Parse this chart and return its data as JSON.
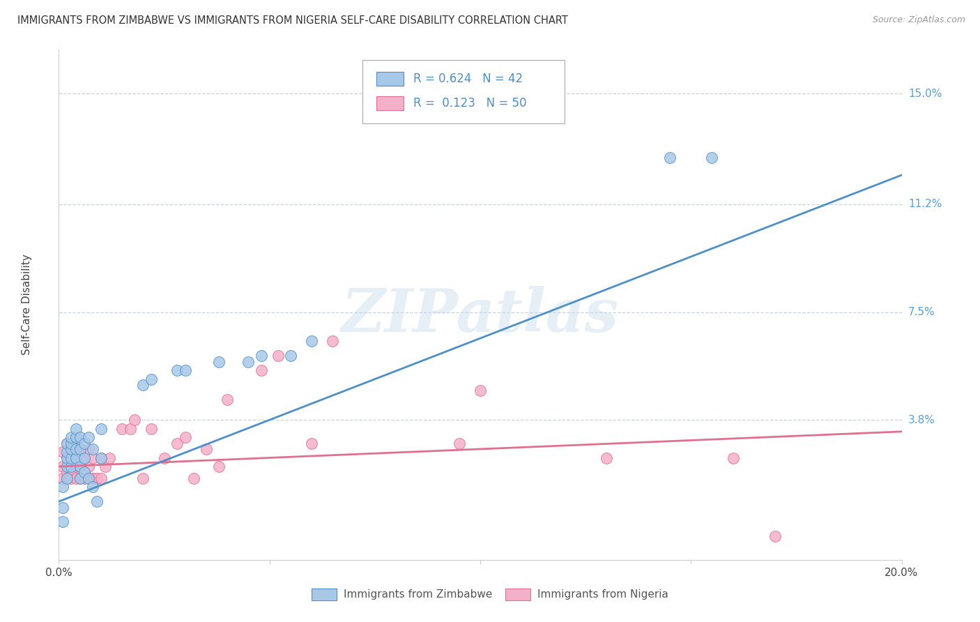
{
  "title": "IMMIGRANTS FROM ZIMBABWE VS IMMIGRANTS FROM NIGERIA SELF-CARE DISABILITY CORRELATION CHART",
  "source": "Source: ZipAtlas.com",
  "ylabel": "Self-Care Disability",
  "xlim": [
    0.0,
    0.2
  ],
  "ylim": [
    -0.01,
    0.165
  ],
  "ytick_positions": [
    0.038,
    0.075,
    0.112,
    0.15
  ],
  "ytick_labels": [
    "3.8%",
    "7.5%",
    "11.2%",
    "15.0%"
  ],
  "grid_color": "#c8d4dc",
  "background_color": "#ffffff",
  "watermark": "ZIPatlas",
  "legend_r1": "0.624",
  "legend_n1": "42",
  "legend_r2": "0.123",
  "legend_n2": "50",
  "color_zimbabwe": "#a8c8e8",
  "color_nigeria": "#f4b0c8",
  "line_color_zimbabwe": "#4f8fc8",
  "line_color_nigeria": "#e07090",
  "tick_label_color": "#5a9fd4",
  "zim_line_x": [
    0.0,
    0.2
  ],
  "zim_line_y": [
    0.01,
    0.122
  ],
  "nig_line_x": [
    0.0,
    0.2
  ],
  "nig_line_y": [
    0.022,
    0.034
  ],
  "zim_scatter_x": [
    0.001,
    0.001,
    0.001,
    0.002,
    0.002,
    0.002,
    0.002,
    0.002,
    0.003,
    0.003,
    0.003,
    0.003,
    0.003,
    0.004,
    0.004,
    0.004,
    0.004,
    0.005,
    0.005,
    0.005,
    0.005,
    0.006,
    0.006,
    0.006,
    0.007,
    0.007,
    0.008,
    0.008,
    0.009,
    0.01,
    0.01,
    0.02,
    0.022,
    0.028,
    0.03,
    0.038,
    0.045,
    0.048,
    0.055,
    0.06,
    0.145,
    0.155
  ],
  "zim_scatter_y": [
    0.003,
    0.008,
    0.015,
    0.018,
    0.022,
    0.025,
    0.027,
    0.03,
    0.022,
    0.025,
    0.028,
    0.03,
    0.032,
    0.025,
    0.028,
    0.032,
    0.035,
    0.018,
    0.022,
    0.028,
    0.032,
    0.02,
    0.025,
    0.03,
    0.018,
    0.032,
    0.015,
    0.028,
    0.01,
    0.025,
    0.035,
    0.05,
    0.052,
    0.055,
    0.055,
    0.058,
    0.058,
    0.06,
    0.06,
    0.065,
    0.128,
    0.128
  ],
  "nig_scatter_x": [
    0.001,
    0.001,
    0.001,
    0.002,
    0.002,
    0.002,
    0.002,
    0.003,
    0.003,
    0.003,
    0.003,
    0.004,
    0.004,
    0.004,
    0.005,
    0.005,
    0.005,
    0.006,
    0.006,
    0.007,
    0.007,
    0.007,
    0.008,
    0.008,
    0.009,
    0.01,
    0.01,
    0.011,
    0.012,
    0.015,
    0.017,
    0.018,
    0.02,
    0.022,
    0.025,
    0.028,
    0.03,
    0.032,
    0.035,
    0.038,
    0.04,
    0.048,
    0.052,
    0.06,
    0.065,
    0.095,
    0.1,
    0.13,
    0.16,
    0.17
  ],
  "nig_scatter_y": [
    0.018,
    0.022,
    0.027,
    0.018,
    0.02,
    0.025,
    0.03,
    0.018,
    0.02,
    0.023,
    0.027,
    0.018,
    0.022,
    0.028,
    0.018,
    0.022,
    0.027,
    0.018,
    0.025,
    0.018,
    0.022,
    0.028,
    0.018,
    0.025,
    0.018,
    0.018,
    0.025,
    0.022,
    0.025,
    0.035,
    0.035,
    0.038,
    0.018,
    0.035,
    0.025,
    0.03,
    0.032,
    0.018,
    0.028,
    0.022,
    0.045,
    0.055,
    0.06,
    0.03,
    0.065,
    0.03,
    0.048,
    0.025,
    0.025,
    -0.002
  ]
}
